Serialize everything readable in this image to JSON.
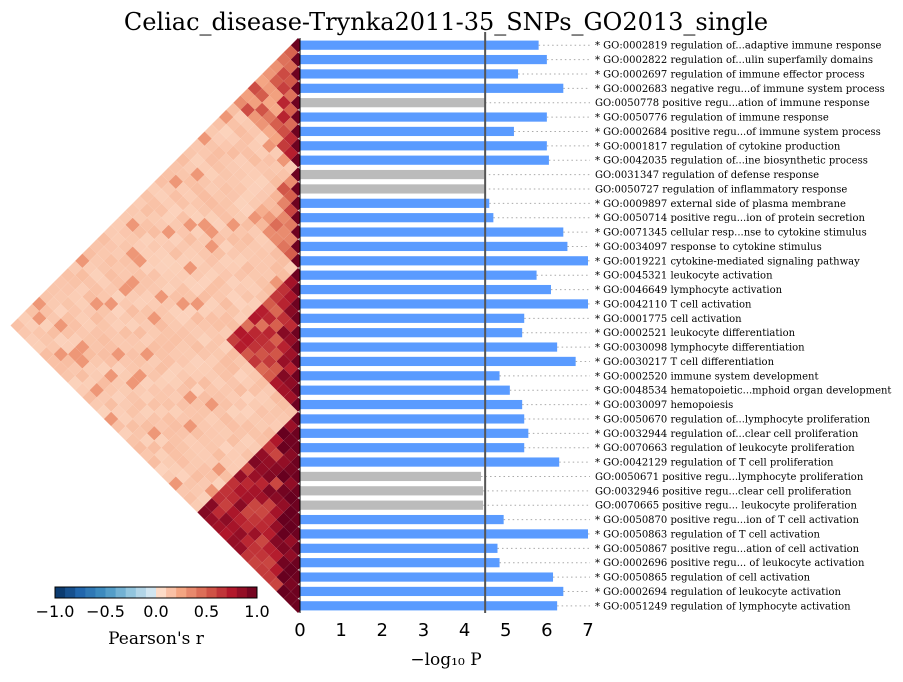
{
  "chart_data": {
    "type": "bar",
    "title": "Celiac_disease-Trynka2011-35_SNPs_GO2013_single",
    "xlabel": "−log₁₀ P",
    "xlim": [
      0,
      7
    ],
    "xticks": [
      "0",
      "1",
      "2",
      "3",
      "4",
      "5",
      "6",
      "7"
    ],
    "threshold": 4.5,
    "colors": {
      "significant": "#5a9bff",
      "nonsignificant": "#bbbbbb",
      "threshold_line": "#555555"
    },
    "categories": [
      "* GO:0002819 regulation of...adaptive immune response",
      "* GO:0002822 regulation of...ulin superfamily domains",
      "* GO:0002697 regulation of immune effector process",
      "* GO:0002683 negative regu...of immune system process",
      "GO:0050778 positive regu...ation of immune response",
      "* GO:0050776 regulation of immune response",
      "* GO:0002684 positive regu...of immune system process",
      "* GO:0001817 regulation of cytokine production",
      "* GO:0042035 regulation of...ine biosynthetic process",
      "GO:0031347 regulation of defense response",
      "GO:0050727 regulation of inflammatory response",
      "* GO:0009897 external side of plasma membrane",
      "* GO:0050714 positive regu...ion of protein secretion",
      "* GO:0071345 cellular resp...nse to cytokine stimulus",
      "* GO:0034097 response to cytokine stimulus",
      "* GO:0019221 cytokine-mediated signaling pathway",
      "* GO:0045321 leukocyte activation",
      "* GO:0046649 lymphocyte activation",
      "* GO:0042110 T cell activation",
      "* GO:0001775 cell activation",
      "* GO:0002521 leukocyte differentiation",
      "* GO:0030098 lymphocyte differentiation",
      "* GO:0030217 T cell differentiation",
      "* GO:0002520 immune system development",
      "* GO:0048534 hematopoietic...mphoid organ development",
      "* GO:0030097 hemopoiesis",
      "* GO:0050670 regulation of...lymphocyte proliferation",
      "* GO:0032944 regulation of...clear cell proliferation",
      "* GO:0070663 regulation of leukocyte proliferation",
      "* GO:0042129 regulation of T cell proliferation",
      "GO:0050671 positive regu...lymphocyte proliferation",
      "GO:0032946 positive regu...clear cell proliferation",
      "GO:0070665 positive regu... leukocyte proliferation",
      "* GO:0050870 positive regu...ion of T cell activation",
      "* GO:0050863 regulation of T cell activation",
      "* GO:0050867 positive regu...ation of cell activation",
      "* GO:0002696 positive regu... of leukocyte activation",
      "* GO:0050865 regulation of cell activation",
      "* GO:0002694 regulation of leukocyte activation",
      "* GO:0051249 regulation of lymphocyte activation"
    ],
    "values": [
      5.8,
      6.0,
      5.3,
      6.4,
      4.5,
      6.0,
      5.2,
      6.0,
      6.05,
      4.48,
      4.48,
      4.6,
      4.7,
      6.4,
      6.5,
      7.0,
      5.75,
      6.1,
      7.0,
      5.45,
      5.4,
      6.25,
      6.7,
      4.85,
      5.1,
      5.4,
      5.45,
      5.55,
      5.45,
      6.3,
      4.4,
      4.45,
      4.45,
      4.95,
      7.0,
      4.8,
      4.85,
      6.15,
      6.4,
      6.25
    ],
    "significant": [
      true,
      true,
      true,
      true,
      false,
      true,
      true,
      true,
      true,
      false,
      false,
      true,
      true,
      true,
      true,
      true,
      true,
      true,
      true,
      true,
      true,
      true,
      true,
      true,
      true,
      true,
      true,
      true,
      true,
      true,
      false,
      false,
      false,
      true,
      true,
      true,
      true,
      true,
      true,
      true
    ],
    "colorbar": {
      "label": "Pearson's r",
      "ticks": [
        "−1.0",
        "−0.5",
        "0.0",
        "0.5",
        "1.0"
      ],
      "range": [
        -1,
        1
      ]
    },
    "heatmap": {
      "description_type": "heatmap",
      "n": 40,
      "block_sequence": [
        "a",
        "a",
        "a",
        "a",
        "a",
        "a",
        "a",
        "a",
        "a",
        "b",
        "b",
        "b",
        "b",
        "b",
        "b",
        "b",
        "c",
        "c",
        "c",
        "c",
        "c",
        "c",
        "c",
        "c",
        "c",
        "c",
        "d",
        "d",
        "d",
        "d",
        "d",
        "d",
        "d",
        "d",
        "d",
        "d",
        "d",
        "d",
        "d",
        "d"
      ],
      "block_levels": {
        "a": 0.4,
        "b": 0.3,
        "c": 0.6,
        "d": 0.75
      },
      "background_level": 0.12
    }
  }
}
